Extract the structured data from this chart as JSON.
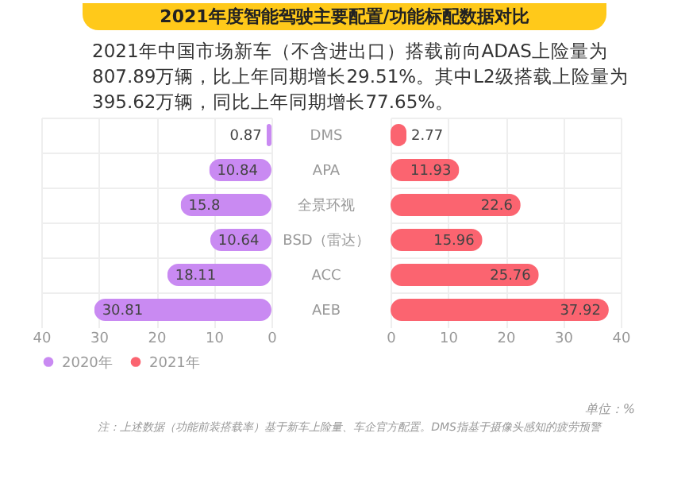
{
  "chart_data": [
    {
      "type": "bar",
      "orientation": "horizontal",
      "title": "2021年度智能驾驶主要配置/功能标配数据对比",
      "subtitle": "2021年中国市场新车（不含进出口）搭载前向ADAS上险量为807.89万辆，比上年同期增长29.51%。其中L2级搭载上险量为395.62万辆，同比上年同期增长77.65%。",
      "categories": [
        "DMS",
        "APA",
        "全景环视",
        "BSD（雷达）",
        "ACC",
        "AEB"
      ],
      "series": [
        {
          "name": "2020年",
          "color": "#c98af2",
          "values": [
            0.87,
            10.84,
            15.8,
            10.64,
            18.11,
            30.81
          ]
        }
      ],
      "xlim": [
        40,
        0
      ],
      "xticks": [
        40,
        30,
        20,
        10,
        0
      ],
      "grid": true,
      "data_labels": true,
      "legend": "bottom"
    },
    {
      "type": "bar",
      "orientation": "horizontal",
      "series": [
        {
          "name": "2021年",
          "color": "#fb6470",
          "values": [
            2.77,
            11.93,
            22.6,
            15.96,
            25.76,
            37.92
          ]
        }
      ],
      "xlim": [
        0,
        40
      ],
      "xticks": [
        0,
        10,
        20,
        30,
        40
      ],
      "grid": true,
      "data_labels": true,
      "legend": "bottom",
      "tick_labels": "x",
      "annotations": [
        "单位：%",
        "注：上述数据（功能前装搭载率）基于新车上险量、车企官方配置。DMS指基于摄像头感知的疲劳预警"
      ]
    }
  ]
}
